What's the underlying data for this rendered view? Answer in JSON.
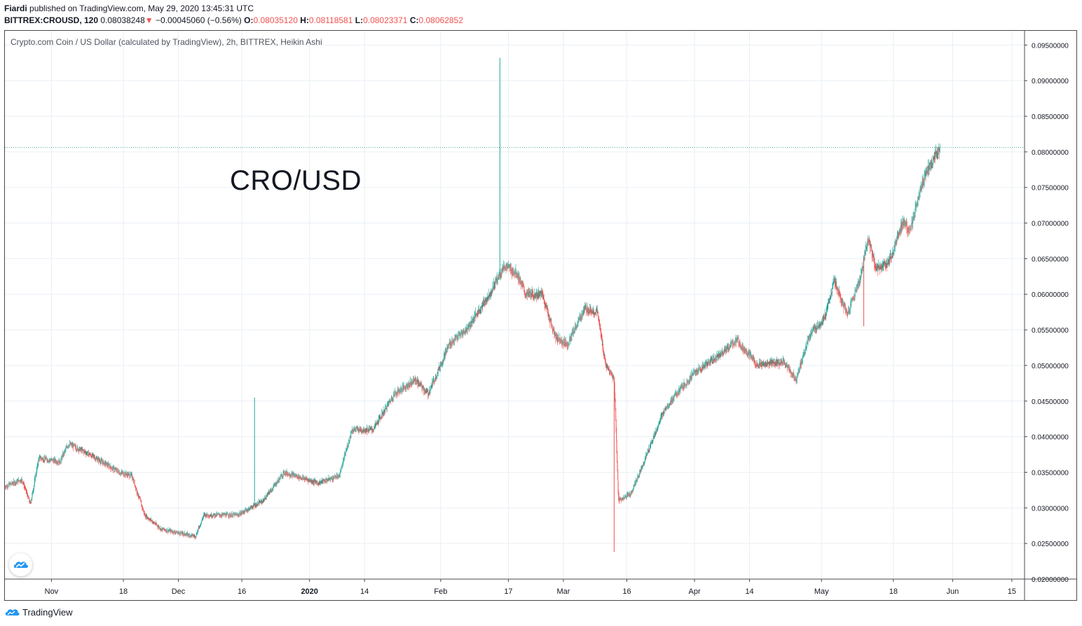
{
  "header": {
    "author": "Fiardi",
    "published": "published on TradingView.com, May 29, 2020 13:45:31 UTC",
    "symbol": "BITTREX:CROUSD, 120",
    "last": "0.08038248",
    "arrow": "▼",
    "change": "−0.00045060 (−0.56%)",
    "o_label": "O:",
    "o_value": "0.08035120",
    "h_label": "H:",
    "h_value": "0.08118581",
    "l_label": "L:",
    "l_value": "0.08023371",
    "c_label": "C:",
    "c_value": "0.08062852"
  },
  "chart_title": "Crypto.com Coin / US Dollar (calculated by TradingView), 2h, BITTREX, Heikin Ashi",
  "big_label": "CRO/USD",
  "footer": {
    "brand": "TradingView"
  },
  "colors": {
    "up": "#26a69a",
    "down": "#ef5350",
    "grid": "#e9eff5",
    "price_line": "#4caf93",
    "axis_text": "#131722"
  },
  "icons": {
    "logo": "tradingview-cloud-icon"
  },
  "chart_data": {
    "type": "candlestick",
    "style": "Heikin Ashi",
    "interval": "2h",
    "exchange": "BITTREX",
    "y_ticks": [
      "0.02000000",
      "0.02500000",
      "0.03000000",
      "0.03500000",
      "0.04000000",
      "0.04500000",
      "0.05000000",
      "0.05500000",
      "0.06000000",
      "0.06500000",
      "0.07000000",
      "0.07500000",
      "0.08000000",
      "0.08500000",
      "0.09000000",
      "0.09500000"
    ],
    "ylim": [
      0.02,
      0.097
    ],
    "x_ticks": [
      "Nov",
      "18",
      "Dec",
      "16",
      "2020",
      "14",
      "Feb",
      "17",
      "Mar",
      "16",
      "Apr",
      "14",
      "May",
      "18",
      "Jun",
      "15"
    ],
    "x_range": [
      "2019-10-21",
      "2020-06-18"
    ],
    "x_tick_dates": [
      "2019-11-01",
      "2019-11-18",
      "2019-12-01",
      "2019-12-16",
      "2020-01-01",
      "2020-01-14",
      "2020-02-01",
      "2020-02-17",
      "2020-03-01",
      "2020-03-16",
      "2020-04-01",
      "2020-04-14",
      "2020-05-01",
      "2020-05-18",
      "2020-06-01",
      "2020-06-15"
    ],
    "grid": true,
    "current_price": 0.08062852,
    "price_path": [
      {
        "date": "2019-10-21",
        "price": 0.033
      },
      {
        "date": "2019-10-25",
        "price": 0.034
      },
      {
        "date": "2019-10-27",
        "price": 0.0305
      },
      {
        "date": "2019-10-29",
        "price": 0.037
      },
      {
        "date": "2019-11-03",
        "price": 0.0365
      },
      {
        "date": "2019-11-05",
        "price": 0.039
      },
      {
        "date": "2019-11-10",
        "price": 0.0375
      },
      {
        "date": "2019-11-17",
        "price": 0.035
      },
      {
        "date": "2019-11-20",
        "price": 0.0345
      },
      {
        "date": "2019-11-23",
        "price": 0.029
      },
      {
        "date": "2019-11-27",
        "price": 0.027
      },
      {
        "date": "2019-12-05",
        "price": 0.026
      },
      {
        "date": "2019-12-07",
        "price": 0.029
      },
      {
        "date": "2019-12-15",
        "price": 0.029
      },
      {
        "date": "2019-12-21",
        "price": 0.031
      },
      {
        "date": "2019-12-26",
        "price": 0.035
      },
      {
        "date": "2020-01-03",
        "price": 0.0335
      },
      {
        "date": "2020-01-08",
        "price": 0.0345
      },
      {
        "date": "2020-01-11",
        "price": 0.041
      },
      {
        "date": "2020-01-16",
        "price": 0.041
      },
      {
        "date": "2020-01-21",
        "price": 0.046
      },
      {
        "date": "2020-01-26",
        "price": 0.048
      },
      {
        "date": "2020-01-29",
        "price": 0.046
      },
      {
        "date": "2020-02-03",
        "price": 0.053
      },
      {
        "date": "2020-02-07",
        "price": 0.055
      },
      {
        "date": "2020-02-12",
        "price": 0.0595
      },
      {
        "date": "2020-02-16",
        "price": 0.064
      },
      {
        "date": "2020-02-19",
        "price": 0.063
      },
      {
        "date": "2020-02-21",
        "price": 0.06
      },
      {
        "date": "2020-02-25",
        "price": 0.06
      },
      {
        "date": "2020-02-28",
        "price": 0.054
      },
      {
        "date": "2020-03-02",
        "price": 0.053
      },
      {
        "date": "2020-03-06",
        "price": 0.058
      },
      {
        "date": "2020-03-09",
        "price": 0.0575
      },
      {
        "date": "2020-03-11",
        "price": 0.05
      },
      {
        "date": "2020-03-13",
        "price": 0.048
      },
      {
        "date": "2020-03-14",
        "price": 0.031
      },
      {
        "date": "2020-03-17",
        "price": 0.032
      },
      {
        "date": "2020-03-21",
        "price": 0.038
      },
      {
        "date": "2020-03-25",
        "price": 0.044
      },
      {
        "date": "2020-04-01",
        "price": 0.049
      },
      {
        "date": "2020-04-08",
        "price": 0.052
      },
      {
        "date": "2020-04-11",
        "price": 0.0535
      },
      {
        "date": "2020-04-16",
        "price": 0.05
      },
      {
        "date": "2020-04-22",
        "price": 0.0505
      },
      {
        "date": "2020-04-25",
        "price": 0.048
      },
      {
        "date": "2020-04-28",
        "price": 0.054
      },
      {
        "date": "2020-05-02",
        "price": 0.057
      },
      {
        "date": "2020-05-04",
        "price": 0.062
      },
      {
        "date": "2020-05-07",
        "price": 0.057
      },
      {
        "date": "2020-05-10",
        "price": 0.062
      },
      {
        "date": "2020-05-12",
        "price": 0.068
      },
      {
        "date": "2020-05-14",
        "price": 0.0635
      },
      {
        "date": "2020-05-17",
        "price": 0.0645
      },
      {
        "date": "2020-05-20",
        "price": 0.07
      },
      {
        "date": "2020-05-22",
        "price": 0.069
      },
      {
        "date": "2020-05-25",
        "price": 0.076
      },
      {
        "date": "2020-05-27",
        "price": 0.0785
      },
      {
        "date": "2020-05-29",
        "price": 0.0806
      }
    ],
    "notable_wicks": [
      {
        "date": "2020-02-15",
        "high": 0.0932
      },
      {
        "date": "2019-12-19",
        "high": 0.0455
      },
      {
        "date": "2020-03-13",
        "low": 0.0238
      },
      {
        "date": "2020-05-11",
        "low": 0.0555
      }
    ]
  }
}
